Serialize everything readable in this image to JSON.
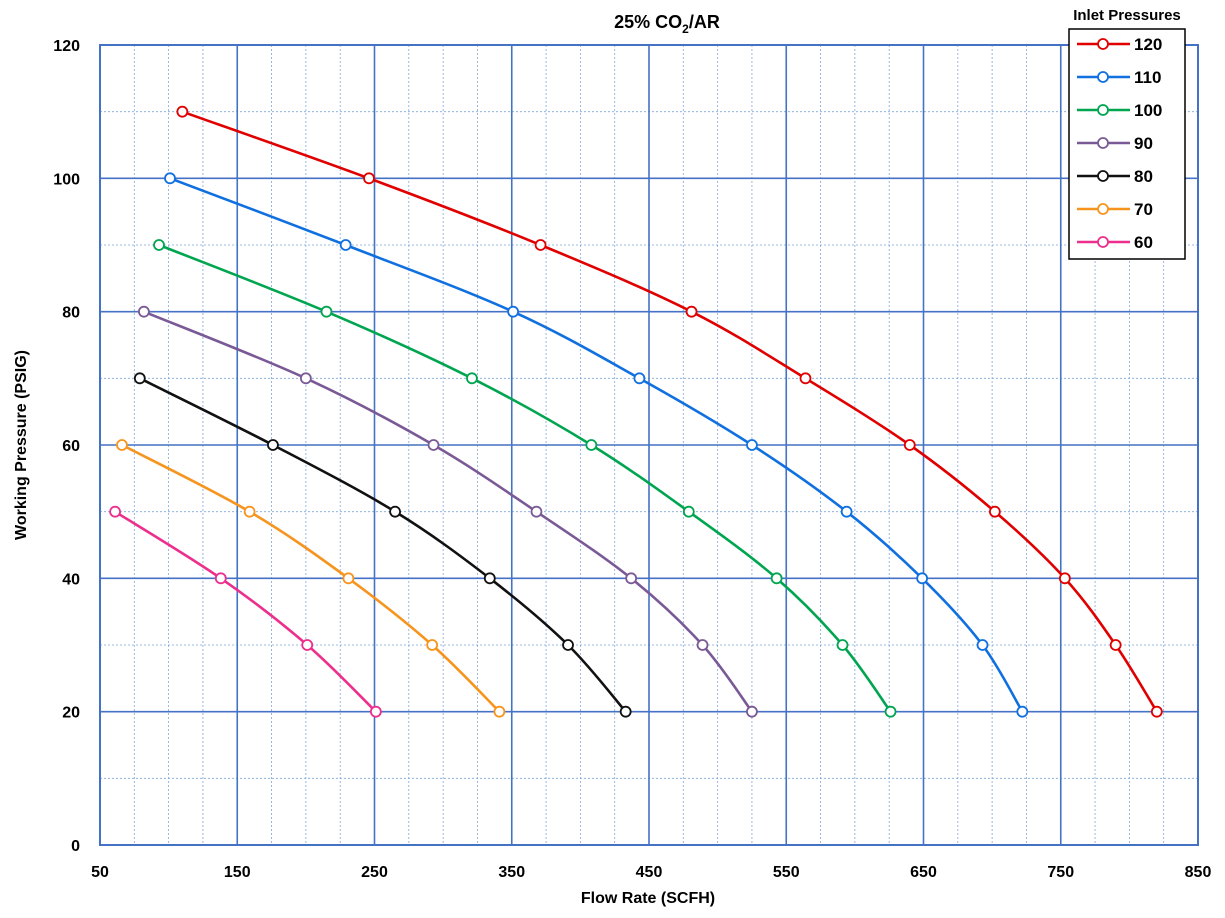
{
  "chart_data": {
    "type": "line",
    "title_main": "25% CO",
    "title_sub": "2",
    "title_end": "/AR",
    "xlabel": "Flow Rate (SCFH)",
    "ylabel": "Working Pressure (PSIG)",
    "xlim": [
      50,
      850
    ],
    "ylim": [
      0,
      120
    ],
    "x_ticks": [
      50,
      150,
      250,
      350,
      450,
      550,
      650,
      750,
      850
    ],
    "y_ticks": [
      0,
      20,
      40,
      60,
      80,
      100,
      120
    ],
    "x_minor_step": 25,
    "y_minor_step": 10,
    "grid": true,
    "legend_title": "Inlet Pressures",
    "legend_position": "top-right",
    "series": [
      {
        "name": "120",
        "color": "#e00000",
        "x": [
          110,
          246,
          371,
          481,
          564,
          640,
          702,
          753,
          790,
          820
        ],
        "y": [
          110,
          100,
          90,
          80,
          70,
          60,
          50,
          40,
          30,
          20
        ]
      },
      {
        "name": "110",
        "color": "#1070e0",
        "x": [
          101,
          229,
          351,
          443,
          525,
          594,
          649,
          693,
          722
        ],
        "y": [
          100,
          90,
          80,
          70,
          60,
          50,
          40,
          30,
          20
        ]
      },
      {
        "name": "100",
        "color": "#00a550",
        "x": [
          93,
          215,
          321,
          408,
          479,
          543,
          591,
          626
        ],
        "y": [
          90,
          80,
          70,
          60,
          50,
          40,
          30,
          20
        ]
      },
      {
        "name": "90",
        "color": "#7a5a96",
        "x": [
          82,
          200,
          293,
          368,
          437,
          489,
          525
        ],
        "y": [
          80,
          70,
          60,
          50,
          40,
          30,
          20
        ]
      },
      {
        "name": "80",
        "color": "#111111",
        "x": [
          79,
          176,
          265,
          334,
          391,
          433
        ],
        "y": [
          70,
          60,
          50,
          40,
          30,
          20
        ]
      },
      {
        "name": "70",
        "color": "#f7941d",
        "x": [
          66,
          159,
          231,
          292,
          341
        ],
        "y": [
          60,
          50,
          40,
          30,
          20
        ]
      },
      {
        "name": "60",
        "color": "#ec2f8c",
        "x": [
          61,
          138,
          201,
          251
        ],
        "y": [
          50,
          40,
          30,
          20
        ]
      }
    ]
  }
}
